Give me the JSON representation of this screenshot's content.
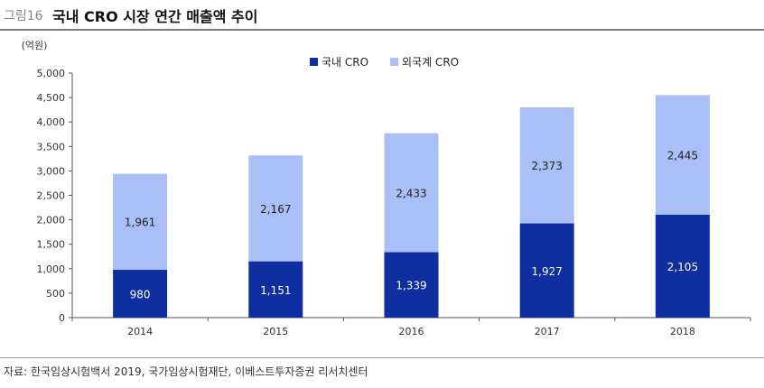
{
  "header": {
    "prefix": "그림16",
    "title": "국내 CRO 시장 연간 매출액 추이"
  },
  "source": "자료: 한국임상시험백서 2019, 국가임상시험재단, 이베스트투자증권 리서치센터",
  "colors": {
    "domestic": "#0f2e9f",
    "foreign": "#a9bff5",
    "axis": "#555555"
  },
  "chart_data": {
    "type": "bar",
    "stacked": true,
    "unit_label": "(억원)",
    "categories": [
      "2014",
      "2015",
      "2016",
      "2017",
      "2018"
    ],
    "series": [
      {
        "name": "국내 CRO",
        "values": [
          980,
          1151,
          1339,
          1927,
          2105
        ],
        "labels": [
          "980",
          "1,151",
          "1,339",
          "1,927",
          "2,105"
        ]
      },
      {
        "name": "외국계 CRO",
        "values": [
          1961,
          2167,
          2433,
          2373,
          2445
        ],
        "labels": [
          "1,961",
          "2,167",
          "2,433",
          "2,373",
          "2,445"
        ]
      }
    ],
    "ylim": [
      0,
      5000
    ],
    "yticks": [
      "0",
      "500",
      "1,000",
      "1,500",
      "2,000",
      "2,500",
      "3,000",
      "3,500",
      "4,000",
      "4,500",
      "5,000"
    ],
    "legend_position": "top-center",
    "grid": false
  }
}
